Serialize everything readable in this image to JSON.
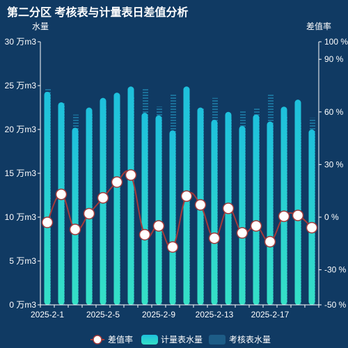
{
  "title": "第二分区 考核表与计量表日差值分析",
  "colors": {
    "background": "#103a63",
    "meter_bar_top": "#1ec0dc",
    "meter_bar_bottom": "#35e0c6",
    "assess_bar": "#1b6f99",
    "rate_line": "#a33a3a",
    "rate_point_fill": "#ffffff"
  },
  "chart_data": {
    "type": "bar",
    "title": "第二分区 考核表与计量表日差值分析",
    "ylabel": "水量",
    "y2label": "差值率",
    "ylim": [
      0,
      30
    ],
    "y2lim": [
      -50,
      100
    ],
    "y_ticks": [
      "0 万m3",
      "5 万m3",
      "10 万m3",
      "15 万m3",
      "20 万m3",
      "25 万m3",
      "30 万m3"
    ],
    "y2_ticks": [
      "-50 %",
      "-30 %",
      "0 %",
      "30 %",
      "60 %",
      "90 %",
      "100 %"
    ],
    "y2_tick_values": [
      -50,
      -30,
      0,
      30,
      60,
      90,
      100
    ],
    "x_tick_labels": [
      "2025-2-1",
      "2025-2-5",
      "2025-2-9",
      "2025-2-13",
      "2025-2-17"
    ],
    "x_tick_indices": [
      0,
      4,
      8,
      12,
      16
    ],
    "categories": [
      "2025-2-1",
      "2025-2-2",
      "2025-2-3",
      "2025-2-4",
      "2025-2-5",
      "2025-2-6",
      "2025-2-7",
      "2025-2-8",
      "2025-2-9",
      "2025-2-10",
      "2025-2-11",
      "2025-2-12",
      "2025-2-13",
      "2025-2-14",
      "2025-2-15",
      "2025-2-16",
      "2025-2-17",
      "2025-2-18",
      "2025-2-19",
      "2025-2-20"
    ],
    "series": [
      {
        "name": "计量表水量",
        "type": "bar",
        "values": [
          24.3,
          23.1,
          20.2,
          22.5,
          23.6,
          24.2,
          24.9,
          21.9,
          21.6,
          19.9,
          24.9,
          22.5,
          21.1,
          22.0,
          20.4,
          21.7,
          20.9,
          22.6,
          23.4,
          20.0
        ]
      },
      {
        "name": "考核表水量",
        "type": "bar",
        "values": [
          24.6,
          23.0,
          21.7,
          21.9,
          22.6,
          22.0,
          23.8,
          24.6,
          22.6,
          24.0,
          23.3,
          22.4,
          23.6,
          21.3,
          22.2,
          22.5,
          24.0,
          21.6,
          21.0,
          21.3
        ]
      },
      {
        "name": "差值率",
        "type": "line",
        "axis": "right",
        "values": [
          -3,
          13,
          -7,
          2,
          11,
          20,
          24,
          -10,
          -5,
          -17,
          12,
          7,
          -12,
          5,
          -9,
          -5,
          -14,
          0.5,
          1,
          -6
        ]
      }
    ],
    "legend": [
      "差值率",
      "计量表水量",
      "考核表水量"
    ],
    "legend_position": "bottom-center",
    "grid": false
  }
}
